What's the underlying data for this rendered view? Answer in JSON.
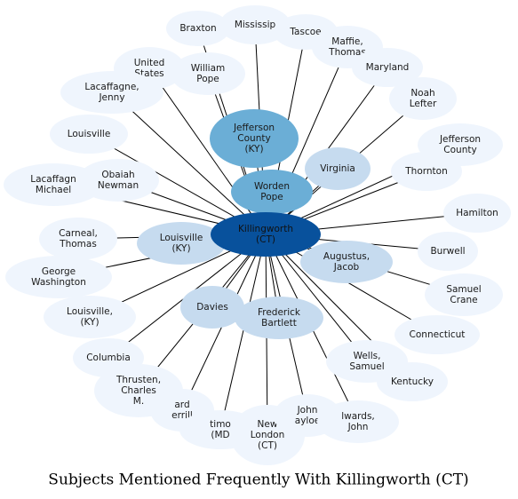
{
  "title": "Subjects Mentioned Frequently With Killingworth (CT)",
  "colors": {
    "hub": "#08519c",
    "level1": "#6baed6",
    "level2": "#c6dbef",
    "leaf": "#eff5fd",
    "edge": "#000000",
    "text": "#1a1a1a"
  },
  "hub": {
    "id": "killingworth",
    "label": [
      "Killingworth",
      "(CT)"
    ]
  },
  "nodes": [
    {
      "id": "braxton",
      "label": [
        "Braxton"
      ],
      "tier": "leaf"
    },
    {
      "id": "mississippi",
      "label": [
        "Mississip"
      ],
      "tier": "leaf"
    },
    {
      "id": "tascoe",
      "label": [
        "Tascoe"
      ],
      "tier": "leaf"
    },
    {
      "id": "maffie-thomas",
      "label": [
        "Maffie,",
        "Thomas"
      ],
      "tier": "leaf"
    },
    {
      "id": "united-states",
      "label": [
        "United",
        "States"
      ],
      "tier": "leaf"
    },
    {
      "id": "william-pope",
      "label": [
        "William",
        "Pope"
      ],
      "tier": "leaf"
    },
    {
      "id": "maryland",
      "label": [
        "Maryland"
      ],
      "tier": "leaf"
    },
    {
      "id": "lacaffagne-jenny",
      "label": [
        "Lacaffagne,",
        "Jenny"
      ],
      "tier": "leaf"
    },
    {
      "id": "noah-lefter",
      "label": [
        "Noah",
        "Lefter"
      ],
      "tier": "leaf"
    },
    {
      "id": "louisville",
      "label": [
        "Louisville"
      ],
      "tier": "leaf"
    },
    {
      "id": "jefferson-county-ky",
      "label": [
        "Jefferson",
        "County",
        "(KY)"
      ],
      "tier": "level1"
    },
    {
      "id": "jefferson-county",
      "label": [
        "Jefferson",
        "County"
      ],
      "tier": "leaf"
    },
    {
      "id": "virginia",
      "label": [
        "Virginia"
      ],
      "tier": "level2"
    },
    {
      "id": "lacaffagne-michael",
      "label": [
        "Lacaffagn",
        "Michael"
      ],
      "tier": "leaf"
    },
    {
      "id": "obaiah-newman",
      "label": [
        "Obaiah",
        "Newman"
      ],
      "tier": "leaf"
    },
    {
      "id": "thornton",
      "label": [
        "Thornton"
      ],
      "tier": "leaf"
    },
    {
      "id": "worden-pope",
      "label": [
        "Worden",
        "Pope"
      ],
      "tier": "level1"
    },
    {
      "id": "hamilton",
      "label": [
        "Hamilton"
      ],
      "tier": "leaf"
    },
    {
      "id": "carneal-thomas",
      "label": [
        "Carneal,",
        "Thomas"
      ],
      "tier": "leaf"
    },
    {
      "id": "louisville-ky",
      "label": [
        "Louisville",
        "(KY)"
      ],
      "tier": "level2"
    },
    {
      "id": "burwell",
      "label": [
        "Burwell"
      ],
      "tier": "leaf"
    },
    {
      "id": "augustus-jacob",
      "label": [
        "Augustus,",
        "Jacob"
      ],
      "tier": "level2"
    },
    {
      "id": "george-washington",
      "label": [
        "George",
        "Washington"
      ],
      "tier": "leaf"
    },
    {
      "id": "samuel-crane",
      "label": [
        "Samuel",
        "Crane"
      ],
      "tier": "leaf"
    },
    {
      "id": "louisville-ky-2",
      "label": [
        "Louisville,",
        "(KY)"
      ],
      "tier": "leaf"
    },
    {
      "id": "davies",
      "label": [
        "Davies"
      ],
      "tier": "level2"
    },
    {
      "id": "frederick-bartlett",
      "label": [
        "Frederick",
        "Bartlett"
      ],
      "tier": "level2"
    },
    {
      "id": "connecticut",
      "label": [
        "Connecticut"
      ],
      "tier": "leaf"
    },
    {
      "id": "columbia",
      "label": [
        "Columbia"
      ],
      "tier": "leaf"
    },
    {
      "id": "wells-samuel",
      "label": [
        "Wells,",
        "Samuel"
      ],
      "tier": "leaf"
    },
    {
      "id": "kentucky",
      "label": [
        "Kentucky"
      ],
      "tier": "leaf"
    },
    {
      "id": "thrusten-charles",
      "label": [
        "Thrusten,",
        "Charles",
        "M."
      ],
      "tier": "leaf"
    },
    {
      "id": "richard-merrill",
      "label": [
        "ard",
        "errill"
      ],
      "tier": "leaf"
    },
    {
      "id": "baltimore-md",
      "label": [
        "timo",
        "(MD"
      ],
      "tier": "leaf"
    },
    {
      "id": "new-london-ct",
      "label": [
        "New",
        "London",
        "(CT)"
      ],
      "tier": "leaf"
    },
    {
      "id": "john-tayloe",
      "label": [
        "John",
        "ayloe"
      ],
      "tier": "leaf"
    },
    {
      "id": "edwards-john",
      "label": [
        "lwards,",
        "John"
      ],
      "tier": "leaf"
    }
  ]
}
